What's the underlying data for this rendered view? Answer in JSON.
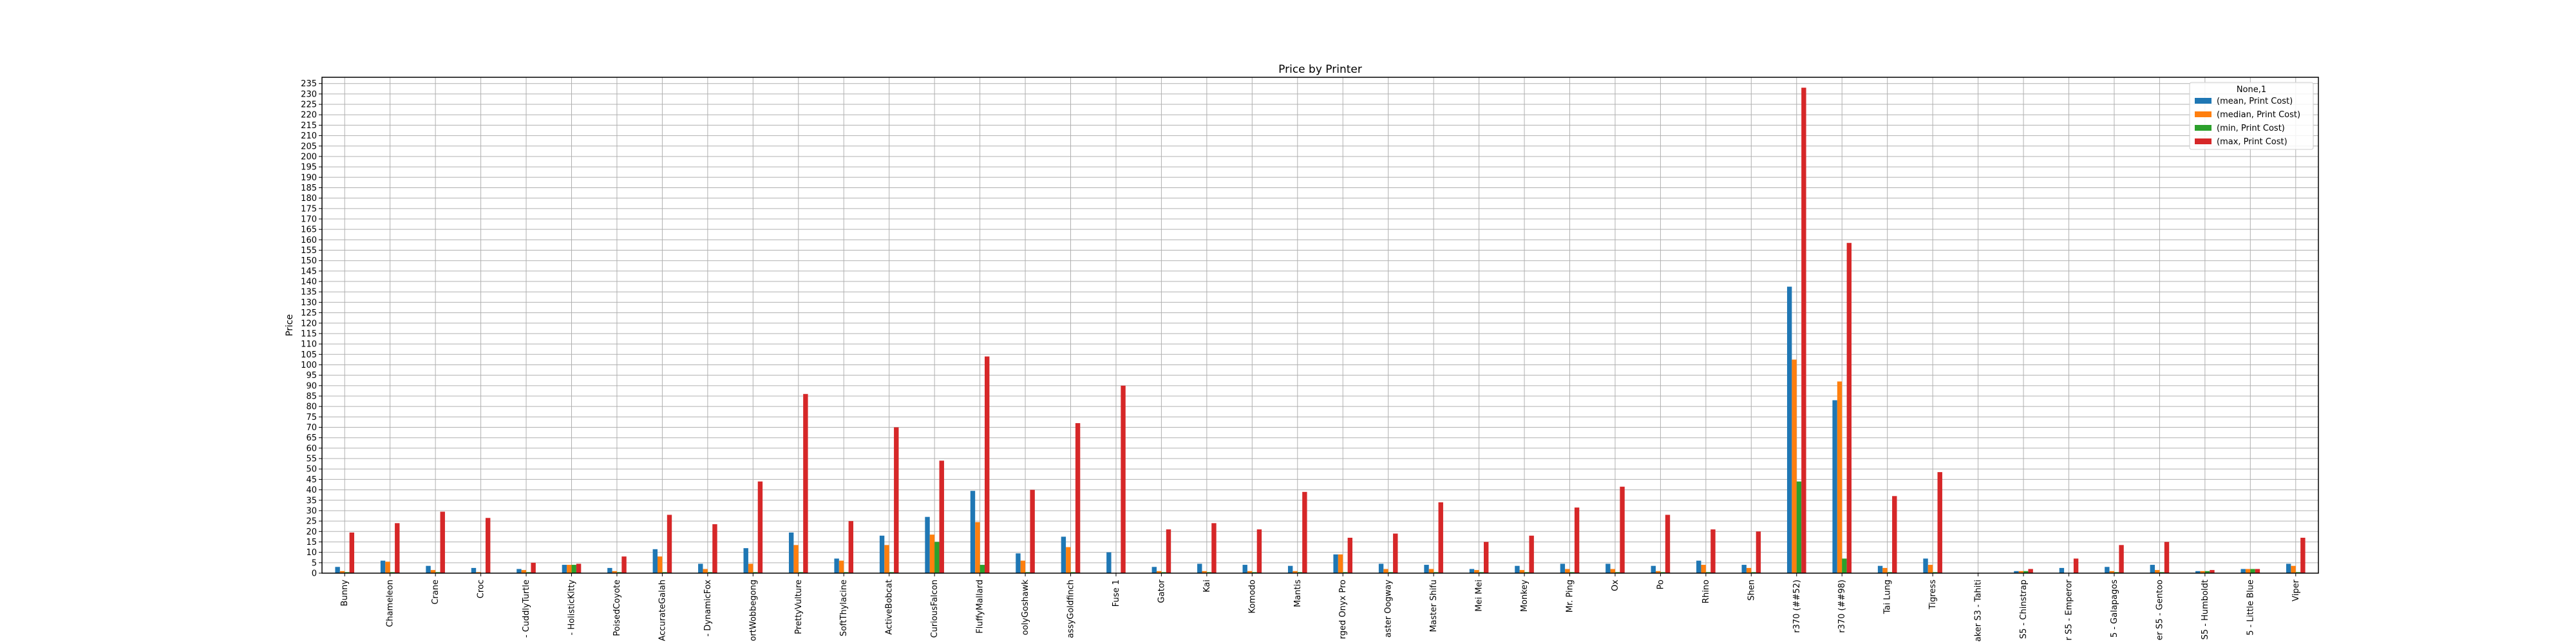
{
  "chart_data": {
    "type": "bar",
    "title": "Price by Printer",
    "xlabel": "",
    "ylabel": "Price",
    "ylim": [
      0,
      238
    ],
    "yticks": [
      0,
      5,
      10,
      15,
      20,
      25,
      30,
      35,
      40,
      45,
      50,
      55,
      60,
      65,
      70,
      75,
      80,
      85,
      90,
      95,
      100,
      105,
      110,
      115,
      120,
      125,
      130,
      135,
      140,
      145,
      150,
      155,
      160,
      165,
      170,
      175,
      180,
      185,
      190,
      195,
      200,
      205,
      210,
      215,
      220,
      225,
      230,
      235
    ],
    "grid": true,
    "legend": {
      "title": "None,1",
      "placement": "top-right"
    },
    "categories": [
      "Bunny",
      "Chameleon",
      "Crane",
      "Croc",
      "- CuddlyTurtle",
      "- HolisticKitty",
      "PoisedCoyote",
      "AccurateGalah",
      "- DynamicFox",
      "ortWobbegong",
      "PrettyVulture",
      "SoftThylacine",
      "ActiveBobcat",
      "CuriousFalcon",
      "FluffyMallard",
      "oolyGoshawk",
      "assyGoldfinch",
      "Fuse 1",
      "Gator",
      "Kai",
      "Komodo",
      "Mantis",
      "rged Onyx Pro",
      "aster Oogway",
      "Master Shifu",
      "Mei Mei",
      "Monkey",
      "Mr. Ping",
      "Ox",
      "Po",
      "Rhino",
      "Shen",
      "r370 (##52)",
      "r370 (##98)",
      "Tai Lung",
      "Tigress",
      "aker S3 - Tahiti",
      "S5 - Chinstrap",
      "r S5 - Emperor",
      "5 - Galapagos",
      "er S5 - Gentoo",
      "S5 - Humboldt",
      "5 - Little Blue",
      "Viper"
    ],
    "series": [
      {
        "name": "(mean, Print Cost)",
        "color": "#1f77b4",
        "values": [
          3,
          6,
          3.5,
          2.5,
          2,
          4,
          2.5,
          11.5,
          4.5,
          12,
          19.5,
          7,
          18,
          27,
          39.5,
          9.5,
          17.5,
          10,
          3,
          4.5,
          4,
          3.5,
          9,
          4.5,
          4,
          2,
          3.5,
          4.5,
          4.5,
          3.5,
          6,
          4,
          137.5,
          83,
          3.5,
          7,
          0,
          1,
          2.5,
          3,
          4,
          1,
          2,
          4.5
        ]
      },
      {
        "name": "(median, Print Cost)",
        "color": "#ff7f0e",
        "values": [
          1,
          5.5,
          1.5,
          0.5,
          1.5,
          4,
          1,
          8,
          2,
          4.5,
          13.5,
          6,
          13.5,
          18.5,
          24.5,
          6,
          12.5,
          0,
          1,
          1,
          1,
          1,
          9,
          2,
          2,
          1.5,
          1.5,
          2,
          2,
          1,
          4,
          2.5,
          102.5,
          92,
          2.5,
          4,
          0,
          1,
          0,
          1,
          1.5,
          1,
          2,
          3.5
        ]
      },
      {
        "name": "(min, Print Cost)",
        "color": "#2ca02c",
        "values": [
          0.5,
          0.5,
          0.5,
          0,
          0.5,
          4,
          0.5,
          0.5,
          0.5,
          0.5,
          0.5,
          0.5,
          0.5,
          15,
          4,
          0.5,
          0.5,
          0,
          0.5,
          0.5,
          0.5,
          0.5,
          0.5,
          0.5,
          0.5,
          0.5,
          0.5,
          0.5,
          0.5,
          0.5,
          0.5,
          0.5,
          44,
          7,
          0.5,
          0.5,
          0,
          1,
          0,
          0.5,
          0.5,
          1,
          2,
          0.5
        ]
      },
      {
        "name": "(max, Print Cost)",
        "color": "#d62728",
        "values": [
          19.5,
          24,
          29.5,
          26.5,
          5,
          4.5,
          8,
          28,
          23.5,
          44,
          86,
          25,
          70,
          54,
          104,
          40,
          72,
          90,
          21,
          24,
          21,
          39,
          17,
          19,
          34,
          15,
          18,
          31.5,
          41.5,
          28,
          21,
          20,
          233,
          158.5,
          37,
          48.5,
          0,
          2,
          7,
          13.5,
          15,
          1.5,
          2,
          17
        ]
      }
    ]
  }
}
